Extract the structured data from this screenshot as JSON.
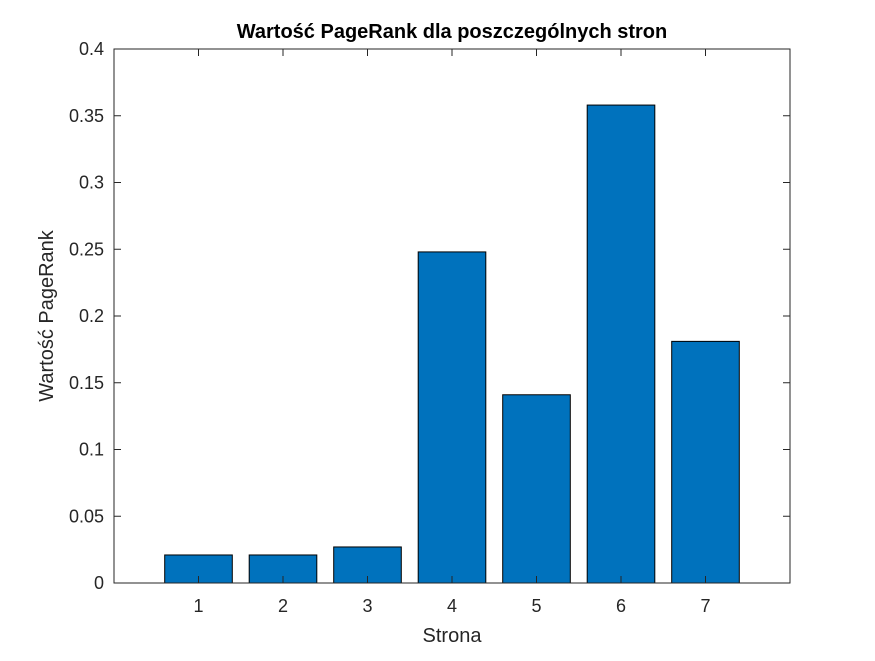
{
  "chart_data": {
    "type": "bar",
    "title": "Wartość PageRank dla poszczególnych stron",
    "xlabel": "Strona",
    "ylabel": "Wartość PageRank",
    "categories": [
      "1",
      "2",
      "3",
      "4",
      "5",
      "6",
      "7"
    ],
    "values": [
      0.021,
      0.021,
      0.027,
      0.248,
      0.141,
      0.358,
      0.181
    ],
    "xlim": [
      0,
      8
    ],
    "ylim": [
      0,
      0.4
    ],
    "yticks": [
      0,
      0.05,
      0.1,
      0.15,
      0.2,
      0.25,
      0.3,
      0.35,
      0.4
    ],
    "ytick_labels": [
      "0",
      "0.05",
      "0.1",
      "0.15",
      "0.2",
      "0.25",
      "0.3",
      "0.35",
      "0.4"
    ],
    "grid": false,
    "legend": "none",
    "colors": {
      "bar_fill": "#0072BD",
      "bar_edge": "#000000",
      "axes": "#262626"
    }
  }
}
